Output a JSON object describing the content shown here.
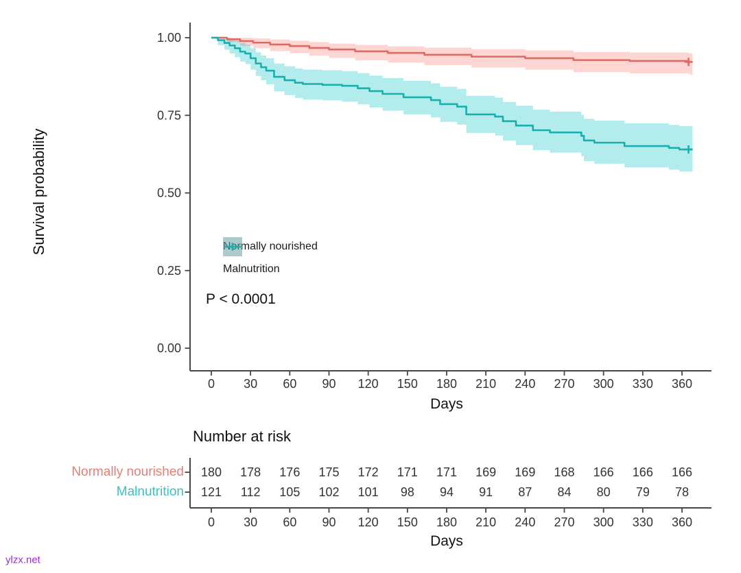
{
  "watermark": "ylzx.net",
  "chart_data": {
    "type": "line",
    "subtype": "kaplan-meier-survival",
    "title": "",
    "xlabel": "Days",
    "ylabel": "Survival probability",
    "xlim": [
      0,
      368
    ],
    "ylim": [
      0.0,
      1.0
    ],
    "grid": false,
    "p_value": "P < 0.0001",
    "x_ticks": [
      0,
      30,
      60,
      90,
      120,
      150,
      180,
      210,
      240,
      270,
      300,
      330,
      360
    ],
    "y_ticks": [
      {
        "label": "1.00",
        "value": 1.0
      },
      {
        "label": "0.75",
        "value": 0.75
      },
      {
        "label": "0.50",
        "value": 0.5
      },
      {
        "label": "0.25",
        "value": 0.25
      },
      {
        "label": "0.00",
        "value": 0.0
      }
    ],
    "legend": {
      "position": "inside-middle-left",
      "entries": [
        {
          "label": "Normally nourished",
          "color": "#de6a61",
          "band_color": "#F8766D"
        },
        {
          "label": "Malnutrition",
          "color": "#18b0ad",
          "band_color": "#00BFC4"
        }
      ]
    },
    "series": [
      {
        "name": "Normally nourished",
        "color": "#de6a61",
        "band_color": "#F8766D",
        "censor_at_end": true,
        "steps_day_surv_lo_hi": [
          [
            0,
            1.0,
            1.0,
            1.0
          ],
          [
            12,
            0.995,
            0.985,
            1.0
          ],
          [
            22,
            0.989,
            0.974,
            1.0
          ],
          [
            32,
            0.984,
            0.966,
            0.998
          ],
          [
            45,
            0.978,
            0.957,
            0.994
          ],
          [
            60,
            0.973,
            0.95,
            0.99
          ],
          [
            75,
            0.967,
            0.942,
            0.986
          ],
          [
            90,
            0.962,
            0.935,
            0.981
          ],
          [
            110,
            0.956,
            0.927,
            0.977
          ],
          [
            135,
            0.951,
            0.92,
            0.972
          ],
          [
            163,
            0.945,
            0.912,
            0.968
          ],
          [
            199,
            0.939,
            0.904,
            0.963
          ],
          [
            240,
            0.934,
            0.897,
            0.959
          ],
          [
            277,
            0.928,
            0.889,
            0.954
          ],
          [
            320,
            0.925,
            0.885,
            0.952
          ],
          [
            365,
            0.922,
            0.881,
            0.95
          ]
        ]
      },
      {
        "name": "Malnutrition",
        "color": "#18b0ad",
        "band_color": "#00BFC4",
        "censor_at_end": true,
        "steps_day_surv_lo_hi": [
          [
            0,
            1.0,
            1.0,
            1.0
          ],
          [
            5,
            0.992,
            0.976,
            1.0
          ],
          [
            10,
            0.983,
            0.961,
            1.0
          ],
          [
            14,
            0.975,
            0.949,
            0.996
          ],
          [
            18,
            0.966,
            0.937,
            0.99
          ],
          [
            22,
            0.955,
            0.923,
            0.983
          ],
          [
            26,
            0.949,
            0.915,
            0.978
          ],
          [
            30,
            0.934,
            0.897,
            0.966
          ],
          [
            34,
            0.917,
            0.877,
            0.953
          ],
          [
            38,
            0.905,
            0.863,
            0.943
          ],
          [
            42,
            0.894,
            0.85,
            0.934
          ],
          [
            48,
            0.874,
            0.827,
            0.917
          ],
          [
            56,
            0.863,
            0.815,
            0.908
          ],
          [
            64,
            0.855,
            0.806,
            0.901
          ],
          [
            70,
            0.851,
            0.801,
            0.897
          ],
          [
            85,
            0.848,
            0.798,
            0.895
          ],
          [
            100,
            0.845,
            0.794,
            0.892
          ],
          [
            112,
            0.837,
            0.785,
            0.886
          ],
          [
            121,
            0.828,
            0.775,
            0.878
          ],
          [
            131,
            0.819,
            0.765,
            0.87
          ],
          [
            147,
            0.808,
            0.753,
            0.861
          ],
          [
            168,
            0.799,
            0.743,
            0.853
          ],
          [
            175,
            0.786,
            0.729,
            0.842
          ],
          [
            188,
            0.778,
            0.72,
            0.835
          ],
          [
            195,
            0.753,
            0.693,
            0.813
          ],
          [
            217,
            0.746,
            0.685,
            0.807
          ],
          [
            223,
            0.731,
            0.669,
            0.793
          ],
          [
            233,
            0.717,
            0.654,
            0.781
          ],
          [
            246,
            0.702,
            0.638,
            0.768
          ],
          [
            259,
            0.695,
            0.63,
            0.762
          ],
          [
            283,
            0.684,
            0.618,
            0.752
          ],
          [
            285,
            0.669,
            0.602,
            0.739
          ],
          [
            293,
            0.662,
            0.594,
            0.733
          ],
          [
            316,
            0.651,
            0.582,
            0.724
          ],
          [
            350,
            0.645,
            0.575,
            0.719
          ],
          [
            358,
            0.64,
            0.569,
            0.715
          ],
          [
            365,
            0.64,
            0.569,
            0.715
          ]
        ]
      }
    ],
    "risk_table": {
      "title": "Number at risk",
      "xlabel": "Days",
      "x_ticks": [
        0,
        30,
        60,
        90,
        120,
        150,
        180,
        210,
        240,
        270,
        300,
        330,
        360
      ],
      "rows": [
        {
          "label": "Normally nourished",
          "color": "#e08078",
          "values": [
            180,
            178,
            176,
            175,
            172,
            171,
            171,
            169,
            169,
            168,
            166,
            166,
            166
          ]
        },
        {
          "label": "Malnutrition",
          "color": "#3bc0c3",
          "values": [
            121,
            112,
            105,
            102,
            101,
            98,
            94,
            91,
            87,
            84,
            80,
            79,
            78
          ]
        }
      ]
    }
  }
}
